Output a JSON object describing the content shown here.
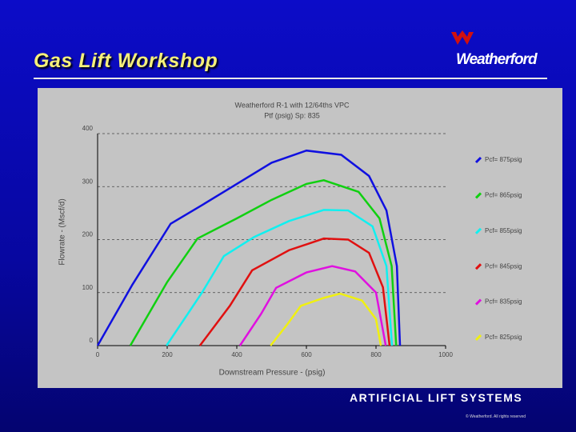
{
  "header": {
    "title": "Gas Lift Workshop",
    "logo": "Weatherford"
  },
  "footer": {
    "text": "ARTIFICIAL LIFT SYSTEMS",
    "copyright": "© Weatherford. All rights reserved"
  },
  "chart_data": {
    "type": "line",
    "title": "Weatherford R-1 with 12/64ths VPC",
    "subtitle": "Ptf (psig) Sp: 835",
    "x_label": "Downstream Pressure - (psig)",
    "y_label": "Flowrate - (Mscf/d)",
    "xlim": [
      0,
      1000
    ],
    "xticks": [
      0,
      200,
      400,
      600,
      800,
      1000
    ],
    "ylim": [
      0,
      400
    ],
    "yticks": [
      0,
      100,
      200,
      300,
      400
    ],
    "grid": true,
    "legend": "right",
    "series": [
      {
        "name": "Pcf= 875psig",
        "color": "#1010e0",
        "x": [
          0,
          100,
          210,
          300,
          400,
          500,
          600,
          700,
          780,
          830,
          860,
          869
        ],
        "values": [
          0,
          115,
          230,
          265,
          305,
          345,
          368,
          360,
          320,
          255,
          150,
          0
        ]
      },
      {
        "name": "Pcf= 865psig",
        "color": "#10d010",
        "x": [
          94,
          200,
          287,
          400,
          500,
          600,
          650,
          750,
          810,
          845,
          858
        ],
        "values": [
          0,
          120,
          202,
          240,
          275,
          305,
          312,
          290,
          240,
          150,
          0
        ]
      },
      {
        "name": "Pcf= 855psig",
        "color": "#10f0f0",
        "x": [
          198,
          300,
          363,
          450,
          550,
          650,
          720,
          790,
          830,
          846
        ],
        "values": [
          0,
          100,
          169,
          205,
          235,
          256,
          255,
          225,
          150,
          0
        ]
      },
      {
        "name": "Pcf= 845psig",
        "color": "#e01010",
        "x": [
          294,
          380,
          444,
          550,
          650,
          720,
          780,
          820,
          839
        ],
        "values": [
          0,
          75,
          142,
          180,
          202,
          200,
          175,
          110,
          0
        ]
      },
      {
        "name": "Pcf= 835psig",
        "color": "#e010e0",
        "x": [
          409,
          470,
          513,
          600,
          674,
          740,
          800,
          828
        ],
        "values": [
          0,
          60,
          109,
          138,
          150,
          140,
          100,
          0
        ]
      },
      {
        "name": "Pcf= 825psig",
        "color": "#f0f010",
        "x": [
          497,
          545,
          584,
          650,
          697,
          760,
          800,
          814
        ],
        "values": [
          0,
          40,
          75,
          90,
          98,
          85,
          50,
          0
        ]
      }
    ]
  }
}
